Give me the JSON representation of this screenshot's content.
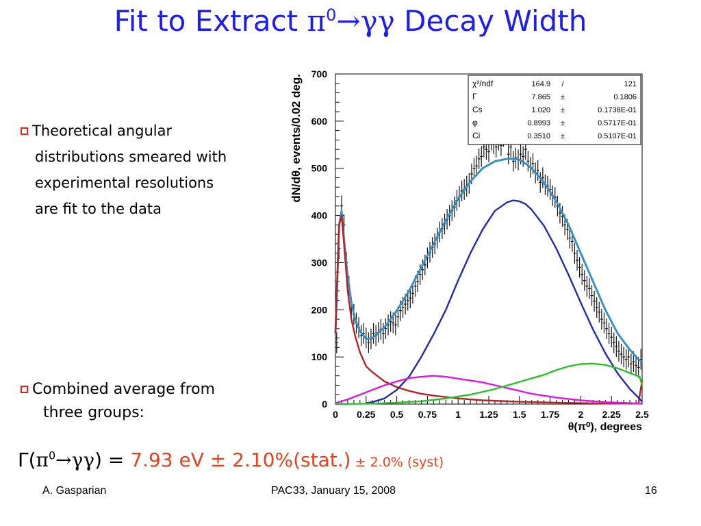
{
  "slide": {
    "title_pre": "Fit to Extract ",
    "title_pi": "π",
    "title_sup": "0",
    "title_arrow": "→",
    "title_gg": "γγ",
    "title_post": " Decay Width",
    "bullet1": [
      "Theoretical angular",
      "distributions smeared with",
      "experimental resolutions",
      "are fit to the data"
    ],
    "bullet2": [
      "Combined average from",
      "three groups:"
    ],
    "result": {
      "gamma": "Γ(",
      "pi": "π",
      "sup": "0",
      "arrow": "→",
      "gg": "γγ",
      "close": ")",
      "eq": " = ",
      "value": "7.93 eV",
      "pm1": " ± ",
      "stat": "2.10%(stat.)",
      "pm2": " ± ",
      "syst": "2.0% (syst)"
    },
    "footer_left": "A. Gasparian",
    "footer_center": "PAC33, January 15, 2008",
    "footer_right": "16"
  },
  "colors": {
    "title": "#1d1df0",
    "bullet": "#d8281a",
    "result": "#e2431d",
    "total": "#3b8fc4",
    "peak": "#b82323",
    "main": "#1f2ba8",
    "magenta": "#d91ae0",
    "green": "#2cbf2c"
  },
  "chart_data": {
    "type": "scatter",
    "xlabel": "θ(π⁰), degrees",
    "ylabel": "dN/dθ, events/0.02 deg.",
    "xlim": [
      0,
      2.5
    ],
    "ylim": [
      0,
      700
    ],
    "xticks": [
      "0",
      "0.25",
      "0.5",
      "0.75",
      "1",
      "1.25",
      "1.5",
      "1.75",
      "2",
      "2.25",
      "2.5"
    ],
    "yticks": [
      "0",
      "100",
      "200",
      "300",
      "400",
      "500",
      "600",
      "700"
    ],
    "stats_box": [
      {
        "label": "χ²/ndf",
        "value": "164.9",
        "sep": "/",
        "error": "121"
      },
      {
        "label": "Γ",
        "value": "7.865",
        "sep": "±",
        "error": "0.1806"
      },
      {
        "label": "Cs",
        "value": "1.020",
        "sep": "±",
        "error": "0.1738E-01"
      },
      {
        "label": "φ",
        "value": "0.8993",
        "sep": "±",
        "error": "0.5717E-01"
      },
      {
        "label": "Ci",
        "value": "0.3510",
        "sep": "±",
        "error": "0.5107E-01"
      }
    ],
    "series": [
      {
        "kind": "points",
        "x": [
          0.01,
          0.03,
          0.05,
          0.07,
          0.09,
          0.11,
          0.13,
          0.15,
          0.17,
          0.19,
          0.21,
          0.23,
          0.25,
          0.27,
          0.29,
          0.31,
          0.33,
          0.35,
          0.37,
          0.39,
          0.41,
          0.43,
          0.45,
          0.47,
          0.49,
          0.51,
          0.53,
          0.55,
          0.57,
          0.59,
          0.61,
          0.63,
          0.65,
          0.67,
          0.69,
          0.71,
          0.73,
          0.75,
          0.77,
          0.79,
          0.81,
          0.83,
          0.85,
          0.87,
          0.89,
          0.91,
          0.93,
          0.95,
          0.97,
          0.99,
          1.01,
          1.03,
          1.05,
          1.07,
          1.09,
          1.11,
          1.13,
          1.15,
          1.17,
          1.19,
          1.21,
          1.23,
          1.25,
          1.27,
          1.29,
          1.31,
          1.33,
          1.35,
          1.37,
          1.39,
          1.41,
          1.43,
          1.45,
          1.47,
          1.49,
          1.51,
          1.53,
          1.55,
          1.57,
          1.59,
          1.61,
          1.63,
          1.65,
          1.67,
          1.69,
          1.71,
          1.73,
          1.75,
          1.77,
          1.79,
          1.81,
          1.83,
          1.85,
          1.87,
          1.89,
          1.91,
          1.93,
          1.95,
          1.97,
          1.99,
          2.01,
          2.03,
          2.05,
          2.07,
          2.09,
          2.11,
          2.13,
          2.15,
          2.17,
          2.19,
          2.21,
          2.23,
          2.25,
          2.27,
          2.29,
          2.31,
          2.33,
          2.35,
          2.37,
          2.39,
          2.41,
          2.43,
          2.45,
          2.47,
          2.49
        ],
        "y": [
          130,
          330,
          420,
          380,
          300,
          250,
          205,
          190,
          172,
          162,
          145,
          150,
          140,
          130,
          138,
          150,
          145,
          152,
          158,
          150,
          160,
          168,
          175,
          172,
          168,
          185,
          198,
          205,
          212,
          220,
          225,
          235,
          250,
          260,
          275,
          285,
          295,
          310,
          322,
          332,
          340,
          352,
          365,
          372,
          382,
          392,
          400,
          410,
          418,
          432,
          440,
          452,
          455,
          462,
          468,
          488,
          500,
          505,
          520,
          525,
          545,
          540,
          535,
          560,
          552,
          545,
          560,
          548,
          568,
          575,
          530,
          545,
          515,
          522,
          518,
          530,
          525,
          540,
          515,
          502,
          510,
          490,
          495,
          470,
          480,
          465,
          462,
          455,
          442,
          438,
          420,
          405,
          398,
          380,
          370,
          352,
          345,
          320,
          305,
          290,
          275,
          262,
          250,
          245,
          230,
          218,
          205,
          195,
          180,
          172,
          160,
          150,
          142,
          130,
          122,
          112,
          106,
          100,
          95,
          100,
          85,
          90,
          82,
          78,
          95
        ],
        "err": 22
      },
      {
        "kind": "curve",
        "name": "total",
        "x": [
          0,
          0.03,
          0.05,
          0.07,
          0.1,
          0.13,
          0.16,
          0.2,
          0.25,
          0.3,
          0.4,
          0.5,
          0.6,
          0.7,
          0.8,
          0.9,
          1.0,
          1.1,
          1.2,
          1.3,
          1.4,
          1.45,
          1.5,
          1.55,
          1.6,
          1.7,
          1.8,
          1.9,
          2.0,
          2.1,
          2.2,
          2.3,
          2.4,
          2.47,
          2.5
        ],
        "y": [
          150,
          380,
          410,
          350,
          270,
          215,
          180,
          155,
          138,
          140,
          163,
          198,
          240,
          290,
          340,
          390,
          435,
          472,
          500,
          515,
          520,
          520,
          518,
          510,
          500,
          470,
          430,
          380,
          320,
          260,
          200,
          150,
          115,
          95,
          90
        ]
      },
      {
        "kind": "curve",
        "name": "peak",
        "x": [
          0,
          0.03,
          0.05,
          0.07,
          0.1,
          0.13,
          0.16,
          0.2,
          0.25,
          0.3,
          0.4,
          0.5,
          0.6,
          0.7,
          0.8,
          1.0,
          1.2,
          1.5,
          1.8,
          2.0,
          2.2,
          2.4,
          2.47,
          2.5
        ],
        "y": [
          150,
          380,
          400,
          340,
          240,
          180,
          145,
          110,
          80,
          68,
          48,
          36,
          28,
          22,
          18,
          12,
          8,
          5,
          3,
          2,
          1,
          1,
          1,
          50
        ]
      },
      {
        "kind": "curve",
        "name": "main",
        "x": [
          0.25,
          0.3,
          0.4,
          0.5,
          0.6,
          0.7,
          0.8,
          0.9,
          1.0,
          1.1,
          1.2,
          1.3,
          1.4,
          1.45,
          1.5,
          1.55,
          1.6,
          1.7,
          1.8,
          1.9,
          2.0,
          2.1,
          2.2,
          2.3,
          2.4,
          2.47,
          2.5
        ],
        "y": [
          2,
          4,
          12,
          30,
          58,
          100,
          148,
          200,
          262,
          320,
          370,
          410,
          428,
          432,
          430,
          424,
          412,
          378,
          330,
          274,
          215,
          158,
          108,
          65,
          32,
          14,
          5
        ]
      },
      {
        "kind": "curve",
        "name": "magenta",
        "x": [
          0,
          0.1,
          0.2,
          0.3,
          0.4,
          0.5,
          0.6,
          0.7,
          0.8,
          0.9,
          1.0,
          1.1,
          1.2,
          1.3,
          1.4,
          1.5,
          1.6,
          1.8,
          2.0,
          2.2,
          2.4,
          2.5
        ],
        "y": [
          2,
          10,
          20,
          30,
          40,
          48,
          55,
          58,
          60,
          58,
          54,
          50,
          46,
          40,
          34,
          28,
          22,
          14,
          8,
          4,
          2,
          1
        ]
      },
      {
        "kind": "curve",
        "name": "green",
        "x": [
          0,
          0.3,
          0.5,
          0.7,
          0.9,
          1.1,
          1.3,
          1.5,
          1.7,
          1.8,
          1.9,
          2.0,
          2.1,
          2.2,
          2.3,
          2.4,
          2.48,
          2.5
        ],
        "y": [
          0,
          1,
          3,
          6,
          12,
          20,
          32,
          47,
          62,
          72,
          80,
          85,
          86,
          83,
          76,
          66,
          58,
          40
        ]
      }
    ]
  }
}
